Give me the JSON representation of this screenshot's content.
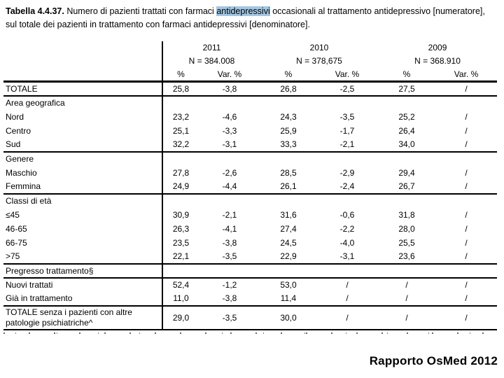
{
  "title": {
    "bold": "Tabella 4.4.37.",
    "pre_highlight": " Numero di pazienti trattati con farmaci ",
    "highlight": "antidepressivi",
    "post_highlight": " occasionali al trattamento antidepressivo [numeratore], sul totale dei pazienti in trattamento con farmaci antidepressivi [denominatore].",
    "highlight_color": "#a3c6e2"
  },
  "table": {
    "year_groups": [
      {
        "year": "2011",
        "n": "N = 384.008"
      },
      {
        "year": "2010",
        "n": "N = 378,675"
      },
      {
        "year": "2009",
        "n": "N = 368.910"
      }
    ],
    "col_headers": [
      "%",
      "Var. %",
      "%",
      "Var. %",
      "%",
      "Var. %"
    ],
    "rows": [
      {
        "label": "TOTALE",
        "type": "data",
        "line_below": true,
        "values": [
          "25,8",
          "-3,8",
          "26,8",
          "-2,5",
          "27,5",
          "/"
        ]
      },
      {
        "label": "Area geografica",
        "type": "section",
        "values": []
      },
      {
        "label": "Nord",
        "type": "data",
        "values": [
          "23,2",
          "-4,6",
          "24,3",
          "-3,5",
          "25,2",
          "/"
        ]
      },
      {
        "label": "Centro",
        "type": "data",
        "values": [
          "25,1",
          "-3,3",
          "25,9",
          "-1,7",
          "26,4",
          "/"
        ]
      },
      {
        "label": "Sud",
        "type": "data",
        "line_below": true,
        "values": [
          "32,2",
          "-3,1",
          "33,3",
          "-2,1",
          "34,0",
          "/"
        ]
      },
      {
        "label": "Genere",
        "type": "section",
        "values": []
      },
      {
        "label": "Maschio",
        "type": "data",
        "values": [
          "27,8",
          "-2,6",
          "28,5",
          "-2,9",
          "29,4",
          "/"
        ]
      },
      {
        "label": "Femmina",
        "type": "data",
        "line_below": true,
        "values": [
          "24,9",
          "-4,4",
          "26,1",
          "-2,4",
          "26,7",
          "/"
        ]
      },
      {
        "label": "Classi di età",
        "type": "section",
        "values": []
      },
      {
        "label": "≤45",
        "type": "data",
        "values": [
          "30,9",
          "-2,1",
          "31,6",
          "-0,6",
          "31,8",
          "/"
        ]
      },
      {
        "label": "46-65",
        "type": "data",
        "values": [
          "26,3",
          "-4,1",
          "27,4",
          "-2,2",
          "28,0",
          "/"
        ]
      },
      {
        "label": "66-75",
        "type": "data",
        "values": [
          "23,5",
          "-3,8",
          "24,5",
          "-4,0",
          "25,5",
          "/"
        ]
      },
      {
        "label": ">75",
        "type": "data",
        "line_below": true,
        "values": [
          "22,1",
          "-3,5",
          "22,9",
          "-3,1",
          "23,6",
          "/"
        ]
      },
      {
        "label": "Pregresso trattamento§",
        "type": "section",
        "line_below": true,
        "values": []
      },
      {
        "label": "Nuovi trattati",
        "type": "data",
        "values": [
          "52,4",
          "-1,2",
          "53,0",
          "/",
          "/",
          "/"
        ]
      },
      {
        "label": "Già in trattamento",
        "type": "data",
        "line_below": true,
        "values": [
          "11,0",
          "-3,8",
          "11,4",
          "/",
          "/",
          "/"
        ]
      },
      {
        "label": "TOTALE senza i pazienti con altre patologie psichiatriche^",
        "type": "data",
        "tall": true,
        "line_below": true,
        "values": [
          "29,0",
          "-3,5",
          "30,0",
          "/",
          "/",
          "/"
        ]
      }
    ]
  },
  "footer": {
    "source_label": "Rapporto OsMed 2012"
  }
}
